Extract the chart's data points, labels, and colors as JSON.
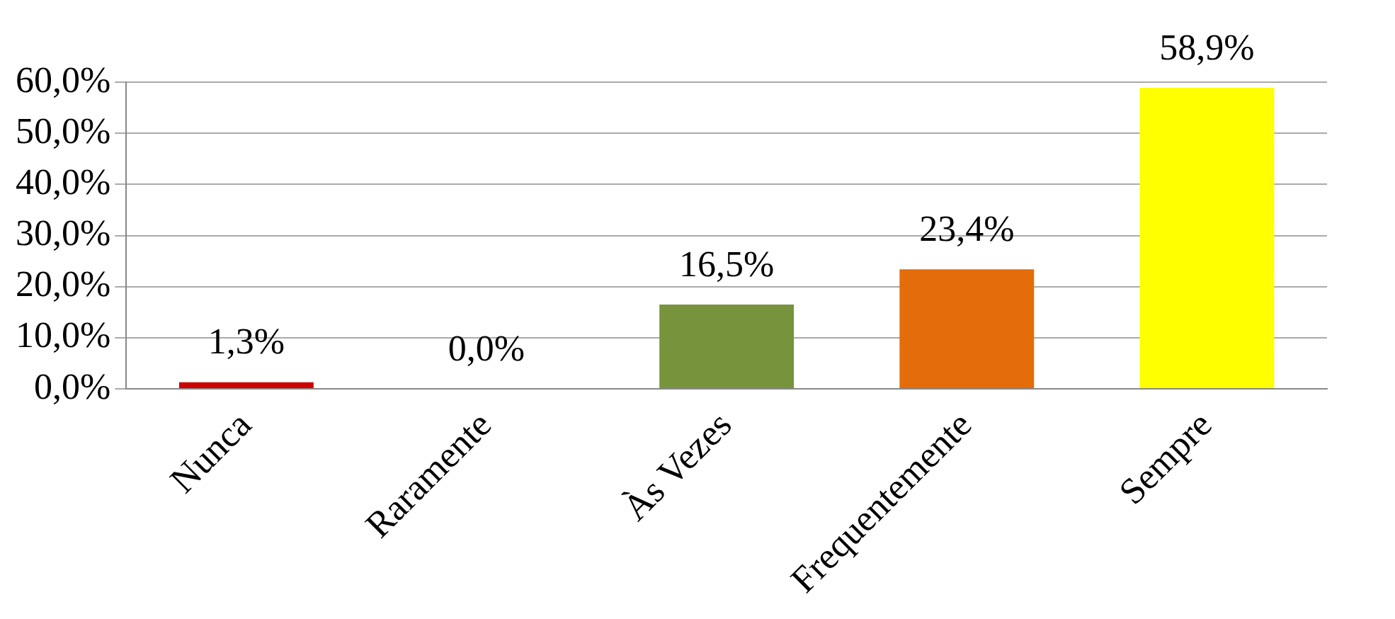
{
  "chart_data": {
    "type": "bar",
    "categories": [
      "Nunca",
      "Raramente",
      "Às Vezes",
      "Frequentemente",
      "Sempre"
    ],
    "values": [
      1.3,
      0.0,
      16.5,
      23.4,
      58.9
    ],
    "colors": [
      "#cc0000",
      "#005a96",
      "#77933c",
      "#e46c0a",
      "#ffff00"
    ],
    "value_labels": [
      "1,3%",
      "0,0%",
      "16,5%",
      "23,4%",
      "58,9%"
    ],
    "ylim": [
      0,
      60
    ],
    "yticks": [
      {
        "value": 0,
        "label": "0,0%"
      },
      {
        "value": 10,
        "label": "10,0%"
      },
      {
        "value": 20,
        "label": "20,0%"
      },
      {
        "value": 30,
        "label": "30,0%"
      },
      {
        "value": 40,
        "label": "40,0%"
      },
      {
        "value": 50,
        "label": "50,0%"
      },
      {
        "value": 60,
        "label": "60,0%"
      }
    ],
    "grid": "y"
  }
}
